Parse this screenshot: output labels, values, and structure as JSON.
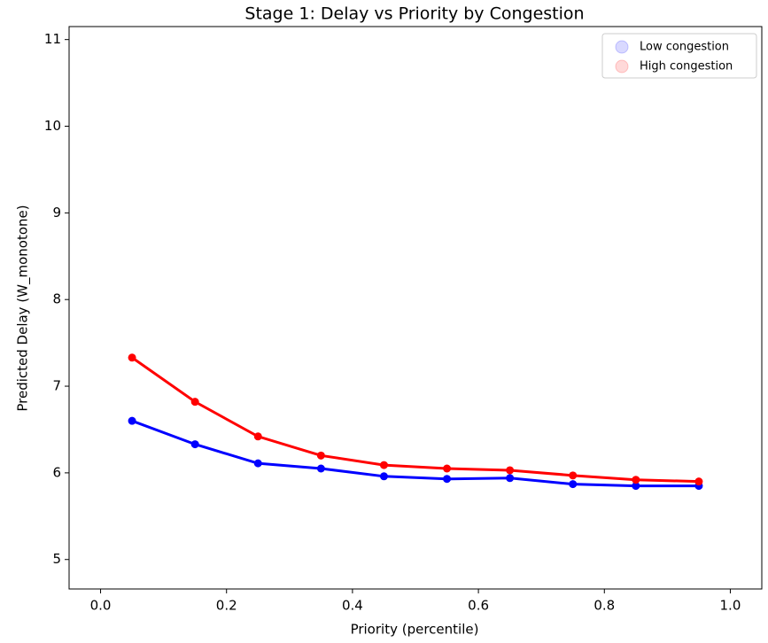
{
  "chart_data": {
    "type": "line",
    "title": "Stage 1: Delay vs Priority by Congestion",
    "xlabel": "Priority (percentile)",
    "ylabel": "Predicted Delay (W_monotone)",
    "x": [
      0.05,
      0.15,
      0.25,
      0.35,
      0.45,
      0.55,
      0.65,
      0.75,
      0.85,
      0.95
    ],
    "series": [
      {
        "name": "Low congestion",
        "color": "#0000ff",
        "values": [
          6.6,
          6.33,
          6.11,
          6.05,
          5.96,
          5.93,
          5.94,
          5.87,
          5.85,
          5.85
        ]
      },
      {
        "name": "High congestion",
        "color": "#ff0000",
        "values": [
          7.33,
          6.82,
          6.42,
          6.2,
          6.09,
          6.05,
          6.03,
          5.97,
          5.92,
          5.9
        ]
      }
    ],
    "xlim": [
      -0.05,
      1.05
    ],
    "ylim": [
      4.66,
      11.15
    ],
    "xticks": [
      {
        "value": 0,
        "label": "0.0"
      },
      {
        "value": 0.2,
        "label": "0.2"
      },
      {
        "value": 0.4,
        "label": "0.4"
      },
      {
        "value": 0.6,
        "label": "0.6"
      },
      {
        "value": 0.8,
        "label": "0.8"
      },
      {
        "value": 1,
        "label": "1.0"
      }
    ],
    "yticks": [
      5,
      6,
      7,
      8,
      9,
      10,
      11
    ],
    "grid": false,
    "legend": "upper-right"
  }
}
